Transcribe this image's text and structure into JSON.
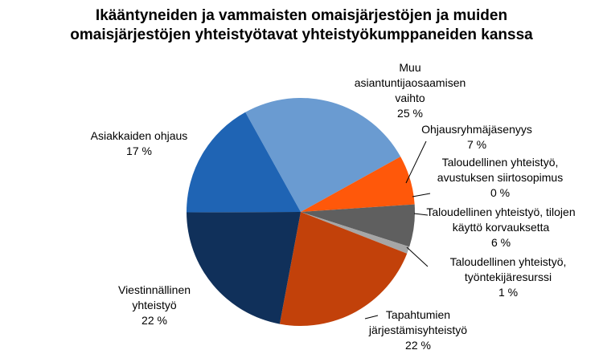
{
  "chart_data": {
    "type": "pie",
    "title": "Ikääntyneiden ja vammaisten omaisjärjestöjen ja muiden omaisjärjestöjen yhteistyötavat yhteistyökumppaneiden kanssa",
    "categories": [
      "Muu asiantuntijaosaamisen vaihto",
      "Ohjausryhmäjäsenyys",
      "Taloudellinen yhteistyö, avustuksen siirtosopimus",
      "Taloudellinen yhteistyö, tilojen käyttö korvauksetta",
      "Taloudellinen yhteistyö, työntekijäresurssi",
      "Tapahtumien järjestämisyhteistyö",
      "Viestinnällinen yhteistyö",
      "Asiakkaiden ohjaus"
    ],
    "values": [
      25,
      7,
      0,
      6,
      1,
      22,
      22,
      17
    ],
    "value_labels": [
      "25 %",
      "7 %",
      "0 %",
      "6 %",
      "1 %",
      "22 %",
      "22 %",
      "17 %"
    ],
    "colors": [
      "#6a9bd1",
      "#ff580a",
      "#e87a2c",
      "#5f5f5f",
      "#a6a6a6",
      "#c2410a",
      "#10305a",
      "#1f64b4"
    ]
  }
}
